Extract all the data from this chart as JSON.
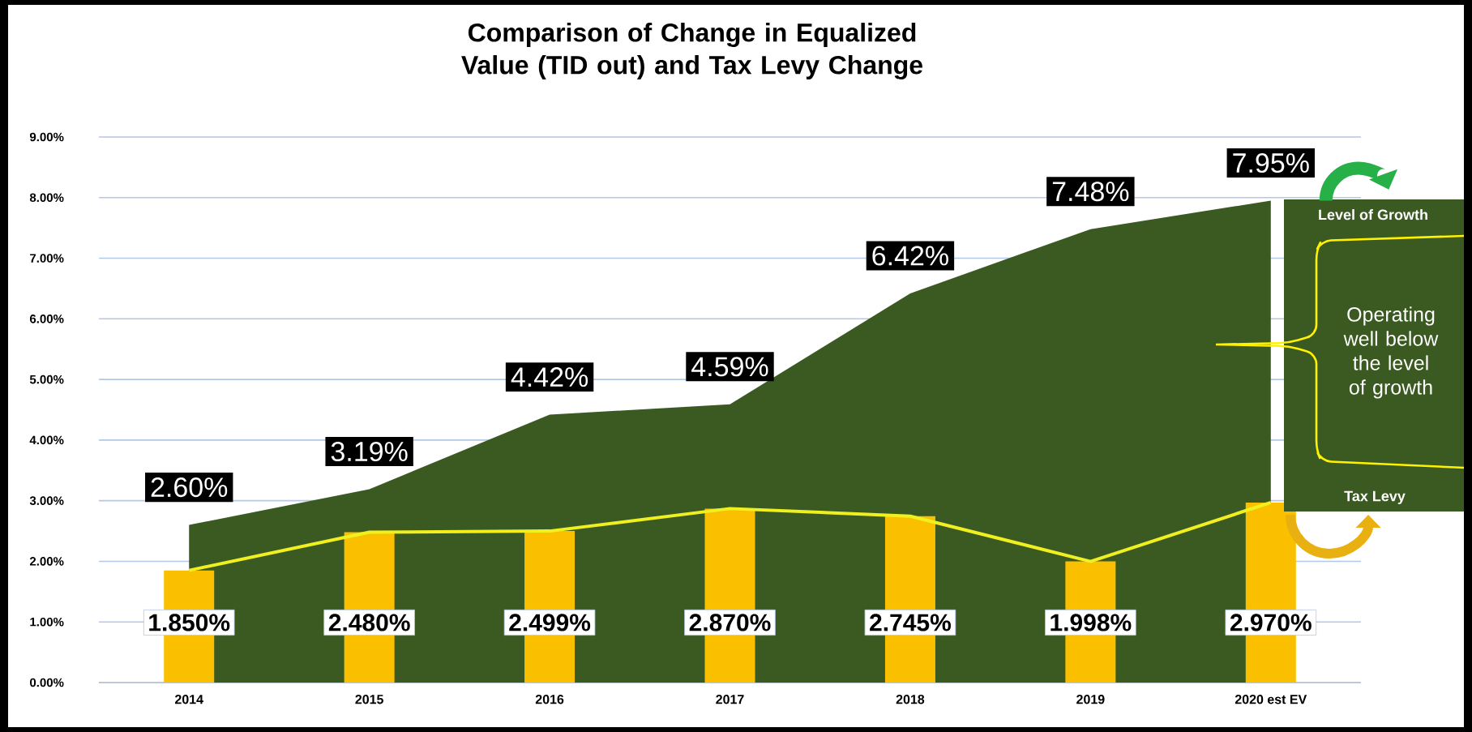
{
  "chart_data": {
    "type": "bar",
    "title": "Comparison of Change in Equalized Value (TID out) and Tax Levy Change",
    "categories": [
      "2014",
      "2015",
      "2016",
      "2017",
      "2018",
      "2019",
      "2020 est EV"
    ],
    "series": [
      {
        "type": "area",
        "color": "#3b5a21",
        "values": [
          2.6,
          3.19,
          4.42,
          4.59,
          6.42,
          7.48,
          7.95
        ],
        "value_labels": [
          "2.60%",
          "3.19%",
          "4.42%",
          "4.59%",
          "6.42%",
          "7.48%",
          "7.95%"
        ]
      },
      {
        "color": "#fac000",
        "values": [
          1.85,
          2.48,
          2.499,
          2.87,
          2.745,
          1.998,
          2.97
        ],
        "value_labels": [
          "1.850%",
          "2.480%",
          "2.499%",
          "2.870%",
          "2.745%",
          "1.998%",
          "2.970%"
        ]
      },
      {
        "type": "line",
        "color": "#f0f020",
        "values": [
          1.85,
          2.48,
          2.499,
          2.87,
          2.745,
          1.998,
          2.97
        ]
      }
    ],
    "ylim": [
      0,
      9
    ],
    "yticks": [
      {
        "value": 0,
        "label": "0.00%"
      },
      {
        "value": 1,
        "label": "1.00%"
      },
      {
        "value": 2,
        "label": "2.00%"
      },
      {
        "value": 3,
        "label": "3.00%"
      },
      {
        "value": 4,
        "label": "4.00%"
      },
      {
        "value": 5,
        "label": "5.00%"
      },
      {
        "value": 6,
        "label": "6.00%"
      },
      {
        "value": 7,
        "label": "7.00%"
      },
      {
        "value": 8,
        "label": "8.00%"
      },
      {
        "value": 9,
        "label": "9.00%"
      }
    ],
    "grid": "y",
    "marker": "none",
    "annotations": [
      "Level of Growth",
      "Operating well below the level of growth",
      "Tax Levy"
    ]
  }
}
